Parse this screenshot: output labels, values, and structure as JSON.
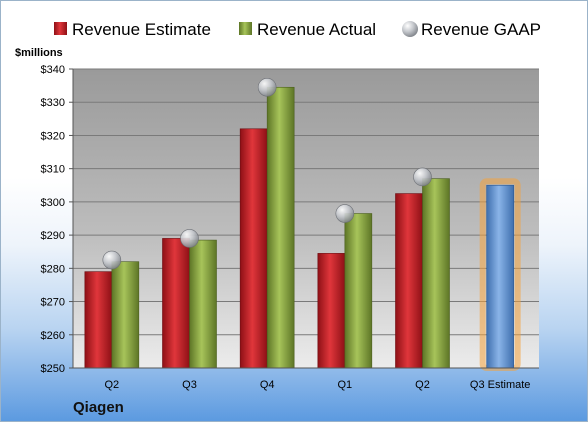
{
  "company": "Qiagen",
  "chart_data": {
    "type": "bar",
    "ylabel": "$millions",
    "ylim": [
      250,
      340
    ],
    "yticks": [
      250,
      260,
      270,
      280,
      290,
      300,
      310,
      320,
      330,
      340
    ],
    "ytick_labels": [
      "$250",
      "$260",
      "$270",
      "$280",
      "$290",
      "$300",
      "$310",
      "$320",
      "$330",
      "$340"
    ],
    "categories": [
      "Q2",
      "Q3",
      "Q4",
      "Q1",
      "Q2",
      "Q3 Estimate"
    ],
    "legend_position": "top",
    "grid": true,
    "series": [
      {
        "name": "Revenue Estimate",
        "kind": "bar",
        "color": "#d0262d",
        "values": [
          279,
          289,
          322,
          284.5,
          302.5,
          null
        ]
      },
      {
        "name": "Revenue Actual",
        "kind": "bar",
        "color": "#8faa45",
        "values": [
          282,
          288.5,
          334.5,
          296.5,
          307,
          null
        ]
      },
      {
        "name": "Revenue GAAP",
        "kind": "marker",
        "color": "#b8bcc2",
        "values": [
          282.5,
          289,
          334.5,
          296.5,
          307.5,
          null
        ]
      },
      {
        "name": "",
        "kind": "bar",
        "color": "#6d9bd6",
        "highlight": "#f4a23c",
        "values": [
          null,
          null,
          null,
          null,
          null,
          305
        ]
      }
    ]
  }
}
